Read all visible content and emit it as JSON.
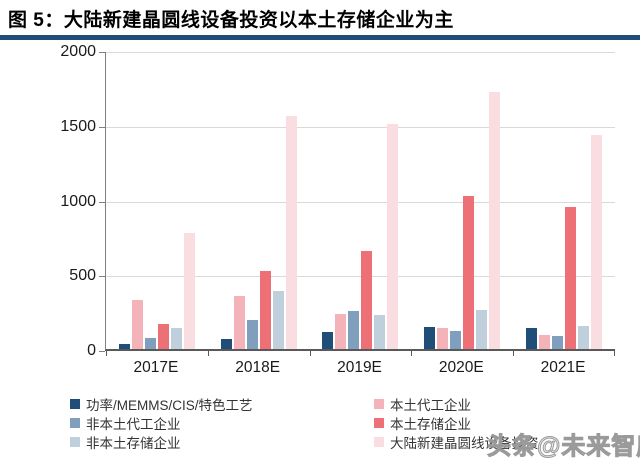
{
  "header": {
    "title": "图 5：大陆新建晶圆线设备投资以本土存储企业为主"
  },
  "watermark": {
    "text": "头条@未来智库"
  },
  "colors": {
    "accent_rule": "#1f4e79",
    "gridline": "#d9d9d9",
    "axis_line": "#595959",
    "background": "#ffffff"
  },
  "chart_data": {
    "type": "bar",
    "title": "大陆新建晶圆线设备投资以本土存储企业为主",
    "xlabel": "",
    "ylabel": "",
    "categories": [
      "2017E",
      "2018E",
      "2019E",
      "2020E",
      "2021E"
    ],
    "series": [
      {
        "name": "功率/MEMMS/CIS/特色工艺",
        "color": "#1f4e79",
        "values": [
          35,
          70,
          115,
          145,
          140
        ]
      },
      {
        "name": "本土代工企业",
        "color": "#f4b3b9",
        "values": [
          330,
          355,
          235,
          140,
          95
        ]
      },
      {
        "name": "非本土代工企业",
        "color": "#7f9fbc",
        "values": [
          75,
          195,
          255,
          120,
          85
        ]
      },
      {
        "name": "本土存储企业",
        "color": "#ee7077",
        "values": [
          170,
          520,
          655,
          1025,
          950
        ]
      },
      {
        "name": "非本土存储企业",
        "color": "#bfd0dc",
        "values": [
          140,
          390,
          225,
          260,
          155
        ]
      },
      {
        "name": "大陆新建晶圆线设备投资",
        "color": "#fadde0",
        "values": [
          775,
          1560,
          1505,
          1720,
          1430
        ]
      }
    ],
    "ylim": [
      0,
      2000
    ],
    "yticks": [
      0,
      500,
      1000,
      1500,
      2000
    ],
    "grid": true,
    "legend_position": "bottom",
    "legend_columns": [
      [
        0,
        2,
        4
      ],
      [
        1,
        3,
        5
      ]
    ]
  }
}
